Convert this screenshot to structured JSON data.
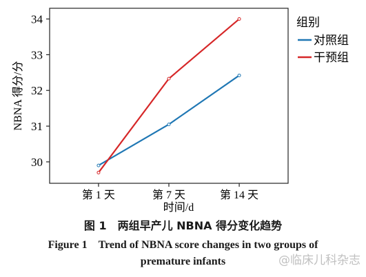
{
  "chart_data": {
    "type": "line",
    "title": "",
    "xlabel": "时间/d",
    "ylabel": "NBNA 得分/分",
    "categories": [
      "第 1 天",
      "第 7 天",
      "第 14 天"
    ],
    "ylim": [
      29.4,
      34.3
    ],
    "yticks": [
      30,
      31,
      32,
      33,
      34
    ],
    "grid": false,
    "legend_title": "组别",
    "legend_position": "right",
    "series": [
      {
        "name": "对照组",
        "color": "#1f77b4",
        "values": [
          29.9,
          31.05,
          32.42
        ]
      },
      {
        "name": "干预组",
        "color": "#d62728",
        "values": [
          29.7,
          32.33,
          34.0
        ]
      }
    ]
  },
  "figure": {
    "caption_cn": "图 1　两组早产儿 NBNA 得分变化趋势",
    "caption_en_line1": "Figure 1　Trend of NBNA score changes in two groups of",
    "caption_en_line2": "premature infants"
  },
  "watermark": "@临床儿科杂志"
}
